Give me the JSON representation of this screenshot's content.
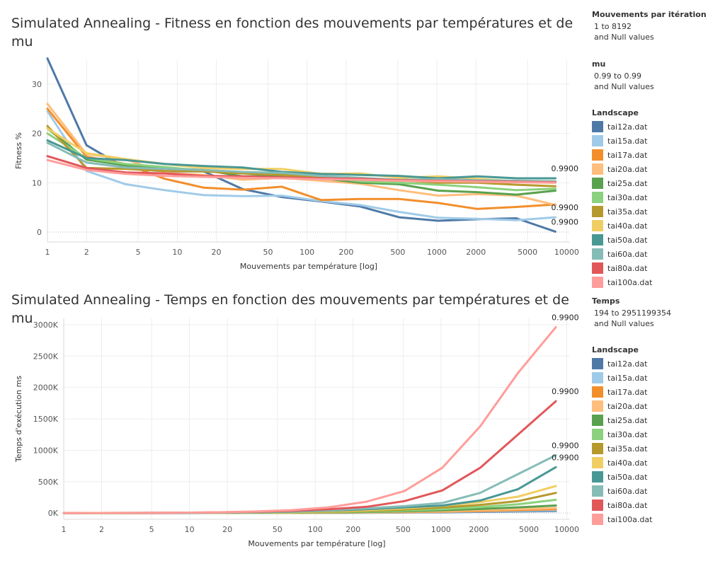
{
  "chart_data": [
    {
      "type": "line",
      "title": "Simulated Annealing - Fitness en fonction des mouvements par températures et de mu",
      "xlabel": "Mouvements par température [log]",
      "ylabel": "Fitness %",
      "x_scale": "log",
      "xticks": [
        1,
        2,
        5,
        10,
        20,
        50,
        100,
        200,
        500,
        1000,
        2000,
        5000,
        10000
      ],
      "yticks": [
        0,
        10,
        20,
        30
      ],
      "ylim": [
        -2,
        35
      ],
      "x": [
        1,
        2,
        4,
        8,
        16,
        32,
        64,
        128,
        256,
        512,
        1024,
        2048,
        4096,
        8192
      ],
      "series": [
        {
          "name": "tai12a.dat",
          "values": [
            35.2,
            17.6,
            13.0,
            12.3,
            12.3,
            8.7,
            7.1,
            6.2,
            5.2,
            3.0,
            2.3,
            2.6,
            2.8,
            0.1
          ]
        },
        {
          "name": "tai15a.dat",
          "values": [
            24.5,
            12.4,
            9.7,
            8.5,
            7.5,
            7.3,
            7.4,
            6.3,
            5.5,
            4.1,
            2.9,
            2.7,
            2.4,
            3.0
          ]
        },
        {
          "name": "tai17a.dat",
          "values": [
            25.0,
            15.3,
            13.8,
            10.8,
            9.0,
            8.6,
            9.2,
            6.5,
            6.7,
            6.7,
            5.9,
            4.7,
            5.1,
            5.6
          ]
        },
        {
          "name": "tai20a.dat",
          "values": [
            26.0,
            15.8,
            14.8,
            12.0,
            11.6,
            10.6,
            11.0,
            10.4,
            9.8,
            8.5,
            7.4,
            7.7,
            7.4,
            5.5
          ]
        },
        {
          "name": "tai25a.dat",
          "values": [
            21.0,
            14.7,
            13.5,
            13.0,
            12.6,
            11.3,
            11.5,
            10.9,
            10.0,
            9.7,
            8.4,
            8.1,
            7.6,
            8.4
          ]
        },
        {
          "name": "tai30a.dat",
          "values": [
            20.0,
            15.0,
            13.8,
            13.2,
            12.4,
            12.0,
            11.8,
            11.3,
            10.3,
            10.0,
            9.6,
            9.1,
            8.5,
            8.8
          ]
        },
        {
          "name": "tai35a.dat",
          "values": [
            21.5,
            13.0,
            12.8,
            12.4,
            12.3,
            11.9,
            11.6,
            11.0,
            10.8,
            10.5,
            10.0,
            10.0,
            9.6,
            9.3
          ]
        },
        {
          "name": "tai40a.dat",
          "values": [
            21.0,
            16.0,
            14.8,
            13.8,
            13.0,
            12.8,
            12.8,
            11.8,
            11.9,
            11.0,
            11.3,
            10.8,
            10.3,
            10.3
          ]
        },
        {
          "name": "tai50a.dat",
          "values": [
            18.6,
            15.0,
            14.6,
            13.8,
            13.4,
            13.1,
            12.2,
            11.8,
            11.6,
            11.4,
            10.9,
            11.3,
            10.9,
            10.9
          ]
        },
        {
          "name": "tai60a.dat",
          "values": [
            18.1,
            14.1,
            13.1,
            12.8,
            12.6,
            12.2,
            12.0,
            11.4,
            11.0,
            10.6,
            10.7,
            10.5,
            10.4,
            10.3
          ]
        },
        {
          "name": "tai80a.dat",
          "values": [
            15.4,
            13.0,
            12.1,
            11.9,
            11.4,
            11.3,
            11.1,
            10.9,
            10.8,
            10.5,
            10.4,
            10.3,
            10.2,
            10.1
          ]
        },
        {
          "name": "tai100a.dat",
          "values": [
            14.6,
            12.6,
            11.8,
            11.4,
            11.2,
            11.0,
            10.9,
            10.7,
            10.6,
            10.4,
            10.3,
            10.2,
            10.1,
            10.0
          ]
        }
      ],
      "end_labels": [
        {
          "series": "tai50a.dat",
          "text": "0.9900"
        },
        {
          "series": "tai15a.dat",
          "text": "0.9900"
        },
        {
          "series": "tai12a.dat",
          "text": "0.9900"
        }
      ],
      "grid": true,
      "legend_position": "right"
    },
    {
      "type": "line",
      "title": "Simulated Annealing - Temps en fonction des mouvements par températures et de mu",
      "xlabel": "Mouvements par température [log]",
      "ylabel": "Temps d'exécution ms",
      "x_scale": "log",
      "xticks": [
        1,
        2,
        5,
        10,
        20,
        50,
        100,
        200,
        500,
        1000,
        2000,
        5000,
        10000
      ],
      "yticks": [
        0,
        500,
        1000,
        1500,
        2000,
        2500,
        3000
      ],
      "ytick_labels": [
        "0K",
        "500K",
        "1000K",
        "1500K",
        "2000K",
        "2500K",
        "3000K"
      ],
      "ylim": [
        -100,
        3100
      ],
      "y_unit": "thousands of ms",
      "x": [
        1,
        2,
        4,
        8,
        16,
        32,
        64,
        128,
        256,
        512,
        1024,
        2048,
        4096,
        8192
      ],
      "series": [
        {
          "name": "tai12a.dat",
          "values": [
            0,
            0,
            0,
            0,
            1,
            1,
            2,
            3,
            5,
            8,
            12,
            18,
            25,
            32
          ]
        },
        {
          "name": "tai15a.dat",
          "values": [
            0,
            0,
            0,
            0,
            1,
            1,
            2,
            4,
            7,
            11,
            17,
            25,
            35,
            45
          ]
        },
        {
          "name": "tai17a.dat",
          "values": [
            0,
            0,
            0,
            1,
            1,
            2,
            3,
            5,
            9,
            14,
            22,
            33,
            47,
            60
          ]
        },
        {
          "name": "tai20a.dat",
          "values": [
            0,
            0,
            0,
            1,
            1,
            2,
            4,
            7,
            12,
            20,
            30,
            46,
            62,
            80
          ]
        },
        {
          "name": "tai25a.dat",
          "values": [
            0,
            0,
            0,
            1,
            2,
            3,
            6,
            10,
            17,
            28,
            44,
            65,
            90,
            120
          ]
        },
        {
          "name": "tai30a.dat",
          "values": [
            0,
            0,
            1,
            1,
            2,
            4,
            8,
            14,
            24,
            40,
            62,
            95,
            140,
            210
          ]
        },
        {
          "name": "tai35a.dat",
          "values": [
            0,
            0,
            1,
            2,
            3,
            6,
            11,
            20,
            34,
            56,
            88,
            130,
            190,
            320
          ]
        },
        {
          "name": "tai40a.dat",
          "values": [
            0,
            0,
            1,
            2,
            4,
            8,
            14,
            26,
            45,
            75,
            115,
            175,
            260,
            430
          ]
        },
        {
          "name": "tai50a.dat",
          "values": [
            0,
            1,
            1,
            3,
            6,
            11,
            21,
            38,
            60,
            90,
            120,
            200,
            380,
            730
          ]
        },
        {
          "name": "tai60a.dat",
          "values": [
            0,
            1,
            2,
            4,
            7,
            14,
            26,
            45,
            75,
            110,
            160,
            320,
            620,
            920
          ]
        },
        {
          "name": "tai80a.dat",
          "values": [
            0,
            1,
            2,
            5,
            10,
            20,
            35,
            60,
            100,
            190,
            360,
            720,
            1250,
            1780
          ]
        },
        {
          "name": "tai100a.dat",
          "values": [
            0,
            1,
            3,
            6,
            12,
            24,
            45,
            90,
            180,
            350,
            720,
            1380,
            2230,
            2960
          ]
        }
      ],
      "end_labels": [
        {
          "series": "tai100a.dat",
          "text": "0.9900"
        },
        {
          "series": "tai80a.dat",
          "text": "0.9900"
        },
        {
          "series": "tai60a.dat",
          "text": "0.9900"
        },
        {
          "series": "tai50a.dat",
          "text": "0.9900"
        }
      ],
      "grid": true,
      "legend_position": "right"
    }
  ],
  "colors": {
    "tai12a.dat": "#4e79a7",
    "tai15a.dat": "#a0cbe8",
    "tai17a.dat": "#f28e2b",
    "tai20a.dat": "#ffbe7d",
    "tai25a.dat": "#59a14f",
    "tai30a.dat": "#8cd17d",
    "tai35a.dat": "#b6992d",
    "tai40a.dat": "#f1ce63",
    "tai50a.dat": "#499894",
    "tai60a.dat": "#86bcb6",
    "tai80a.dat": "#e15759",
    "tai100a.dat": "#ff9d9a"
  },
  "filters": {
    "mouvements_header": "Mouvements par itération",
    "mouvements_range": "1 to 8192",
    "mouvements_null": "and Null values",
    "mu_header": "mu",
    "mu_range": "0.99 to 0.99",
    "mu_null": "and Null values",
    "temps_header": "Temps",
    "temps_range": "194 to 2951199354",
    "temps_null": "and Null values",
    "landscape_header": "Landscape"
  }
}
